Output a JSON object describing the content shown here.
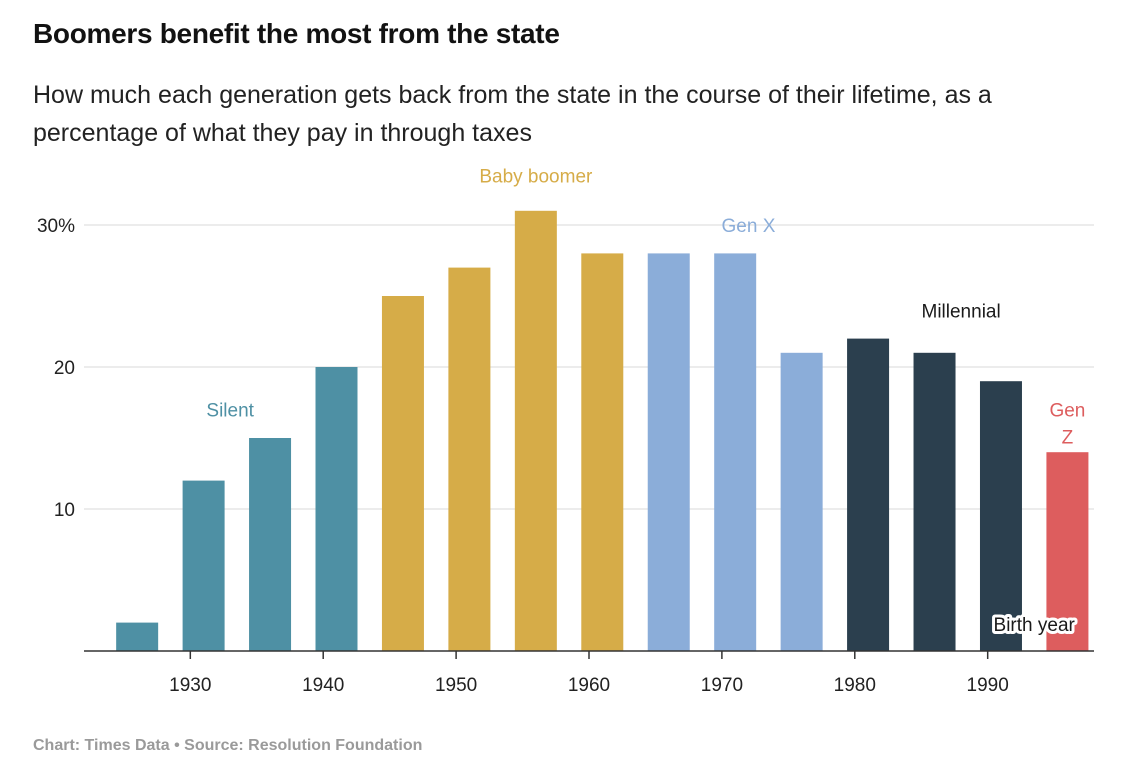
{
  "title": "Boomers benefit the most from the state",
  "subtitle": "How much each generation gets back from the state in the course of their lifetime, as a percentage of what they pay in through taxes",
  "footer": {
    "chart_credit": "Chart: Times Data",
    "separator": "•",
    "source": "Source: Resolution Foundation"
  },
  "colors": {
    "Silent": "#4e90a4",
    "Baby boomer": "#d6ac48",
    "Gen X": "#8badd9",
    "Millennial": "#2b3f4e",
    "Gen Z": "#dd5d5e",
    "grid": "#e6e6e6",
    "axis": "#333333"
  },
  "chart_data": {
    "type": "bar",
    "title": "Boomers benefit the most from the state",
    "xlabel": "Birth year",
    "ylabel": "",
    "ylim": [
      0,
      30
    ],
    "yticks": [
      10,
      20,
      30
    ],
    "ytick_labels": [
      "10",
      "20",
      "30%"
    ],
    "xlim": [
      1922,
      1998
    ],
    "xticks": [
      1930,
      1940,
      1950,
      1960,
      1970,
      1980,
      1990
    ],
    "xtick_labels": [
      "1930",
      "1940",
      "1950",
      "1960",
      "1970",
      "1980",
      "1990"
    ],
    "x": [
      1926,
      1931,
      1936,
      1941,
      1946,
      1951,
      1956,
      1961,
      1966,
      1971,
      1976,
      1981,
      1986,
      1991,
      1996
    ],
    "values": [
      2,
      12,
      15,
      20,
      25,
      27,
      31,
      28,
      28,
      28,
      21,
      22,
      21,
      19,
      14
    ],
    "generations": [
      "Silent",
      "Silent",
      "Silent",
      "Silent",
      "Baby boomer",
      "Baby boomer",
      "Baby boomer",
      "Baby boomer",
      "Gen X",
      "Gen X",
      "Gen X",
      "Millennial",
      "Millennial",
      "Millennial",
      "Gen Z"
    ],
    "generation_labels": [
      {
        "text": "Silent",
        "generation": "Silent",
        "x": 1933,
        "y": 16.5
      },
      {
        "text": "Baby boomer",
        "generation": "Baby boomer",
        "x": 1956,
        "y": 33
      },
      {
        "text": "Gen X",
        "generation": "Gen X",
        "x": 1972,
        "y": 29.5
      },
      {
        "text": "Millennial",
        "generation": "Millennial",
        "x": 1988,
        "y": 23.5
      },
      {
        "text": "Gen Z",
        "generation": "Gen Z",
        "x": 1996,
        "y": 16.5,
        "lines": [
          "Gen",
          "Z"
        ]
      }
    ],
    "annotation": {
      "text": "Birth year",
      "x": 1993.5,
      "y": 1.4
    }
  }
}
